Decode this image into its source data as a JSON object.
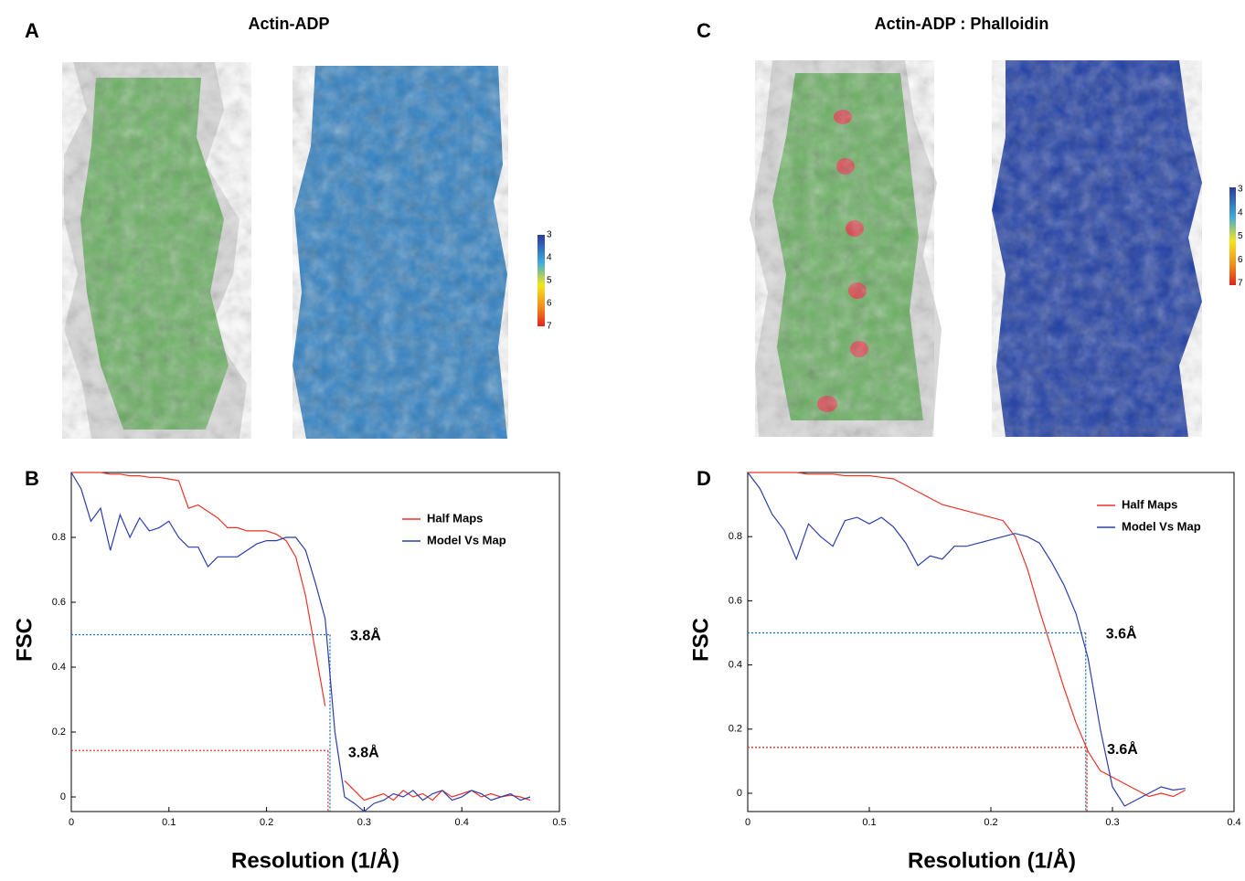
{
  "panels": [
    {
      "label": "A",
      "title": "Actin-ADP",
      "colorbar_ticks": [
        3,
        4,
        5,
        6,
        7
      ]
    },
    {
      "label": "C",
      "title": "Actin-ADP : Phalloidin",
      "colorbar_ticks": [
        3,
        4,
        5,
        6,
        7
      ]
    }
  ],
  "chart_data": [
    {
      "type": "line",
      "label": "B",
      "xlabel": "Resolution (1/Å)",
      "ylabel": "FSC",
      "xlim": [
        0,
        0.5
      ],
      "ylim": [
        -0.045,
        1.0
      ],
      "xticks": [
        0,
        0.1,
        0.2,
        0.3,
        0.4,
        0.5
      ],
      "yticks": [
        0,
        0.2,
        0.4,
        0.6,
        0.8
      ],
      "x": [
        0,
        0.01,
        0.02,
        0.03,
        0.04,
        0.05,
        0.06,
        0.07,
        0.08,
        0.09,
        0.1,
        0.11,
        0.12,
        0.13,
        0.14,
        0.15,
        0.16,
        0.17,
        0.18,
        0.19,
        0.2,
        0.21,
        0.22,
        0.23,
        0.24,
        0.25,
        0.26,
        0.27,
        0.28,
        0.29,
        0.3,
        0.31,
        0.32,
        0.33,
        0.34,
        0.35,
        0.36,
        0.37,
        0.38,
        0.39,
        0.4,
        0.41,
        0.42,
        0.43,
        0.44,
        0.45,
        0.46,
        0.47
      ],
      "series": [
        {
          "name": "Half Maps",
          "color": "#e8342a",
          "values": [
            1.0,
            1.0,
            1.0,
            1.0,
            0.995,
            0.995,
            0.99,
            0.99,
            0.985,
            0.985,
            0.98,
            0.975,
            0.89,
            0.9,
            0.88,
            0.86,
            0.83,
            0.83,
            0.82,
            0.82,
            0.82,
            0.81,
            0.79,
            0.74,
            0.62,
            0.45,
            0.28,
            null,
            0.05,
            0.02,
            -0.01,
            0.0,
            0.01,
            -0.01,
            0.02,
            0.0,
            0.01,
            -0.01,
            0.02,
            0.0,
            0.01,
            0.02,
            0.0,
            0.01,
            0.0,
            0.005,
            0.0,
            -0.01
          ]
        },
        {
          "name": "Model Vs Map",
          "color": "#2c3ea8",
          "values": [
            1.0,
            0.95,
            0.85,
            0.89,
            0.76,
            0.87,
            0.8,
            0.86,
            0.82,
            0.83,
            0.85,
            0.8,
            0.77,
            0.77,
            0.71,
            0.74,
            0.74,
            0.74,
            0.76,
            0.78,
            0.79,
            0.79,
            0.8,
            0.8,
            0.76,
            0.66,
            0.55,
            0.2,
            0.0,
            -0.02,
            -0.045,
            -0.02,
            -0.01,
            0.01,
            0.0,
            0.02,
            -0.01,
            0.01,
            0.02,
            -0.01,
            0.0,
            0.02,
            0.01,
            -0.01,
            0.0,
            0.01,
            -0.01,
            0.0
          ]
        }
      ],
      "thresholds": [
        {
          "value": 0.5,
          "x": 0.265,
          "color": "#1f6fb8",
          "label": "3.8Å"
        },
        {
          "value": 0.143,
          "x": 0.263,
          "color": "#e8342a",
          "label": "3.8Å"
        }
      ]
    },
    {
      "type": "line",
      "label": "D",
      "xlabel": "Resolution (1/Å)",
      "ylabel": "FSC",
      "xlim": [
        0,
        0.4
      ],
      "ylim": [
        -0.057,
        1.0
      ],
      "xticks": [
        0,
        0.1,
        0.2,
        0.3,
        0.4
      ],
      "yticks": [
        0,
        0.2,
        0.4,
        0.6,
        0.8
      ],
      "x": [
        0,
        0.01,
        0.02,
        0.03,
        0.04,
        0.05,
        0.06,
        0.07,
        0.08,
        0.09,
        0.1,
        0.11,
        0.12,
        0.13,
        0.14,
        0.15,
        0.16,
        0.17,
        0.18,
        0.19,
        0.2,
        0.21,
        0.22,
        0.23,
        0.24,
        0.25,
        0.26,
        0.27,
        0.28,
        0.29,
        0.3,
        0.31,
        0.32,
        0.33,
        0.34,
        0.35,
        0.36
      ],
      "series": [
        {
          "name": "Half Maps",
          "color": "#e8342a",
          "values": [
            1.0,
            1.0,
            1.0,
            1.0,
            1.0,
            0.995,
            0.995,
            0.995,
            0.99,
            0.99,
            0.99,
            0.985,
            0.98,
            0.96,
            0.94,
            0.92,
            0.9,
            0.89,
            0.88,
            0.87,
            0.86,
            0.85,
            0.8,
            0.7,
            0.57,
            0.45,
            0.33,
            0.22,
            0.13,
            0.07,
            0.05,
            0.03,
            0.01,
            -0.01,
            0.0,
            -0.01,
            0.01
          ]
        },
        {
          "name": "Model Vs Map",
          "color": "#2c3ea8",
          "values": [
            1.0,
            0.95,
            0.87,
            0.82,
            0.73,
            0.84,
            0.8,
            0.77,
            0.85,
            0.86,
            0.84,
            0.86,
            0.83,
            0.78,
            0.71,
            0.74,
            0.73,
            0.77,
            0.77,
            0.78,
            0.79,
            0.8,
            0.81,
            0.8,
            0.78,
            0.72,
            0.65,
            0.56,
            0.42,
            0.2,
            0.02,
            -0.04,
            -0.02,
            0.0,
            0.02,
            0.01,
            0.015
          ]
        }
      ],
      "thresholds": [
        {
          "value": 0.5,
          "x": 0.278,
          "color": "#1f6fb8",
          "label": "3.6Å"
        },
        {
          "value": 0.143,
          "x": 0.279,
          "color": "#e8342a",
          "label": "3.6Å"
        }
      ]
    }
  ]
}
